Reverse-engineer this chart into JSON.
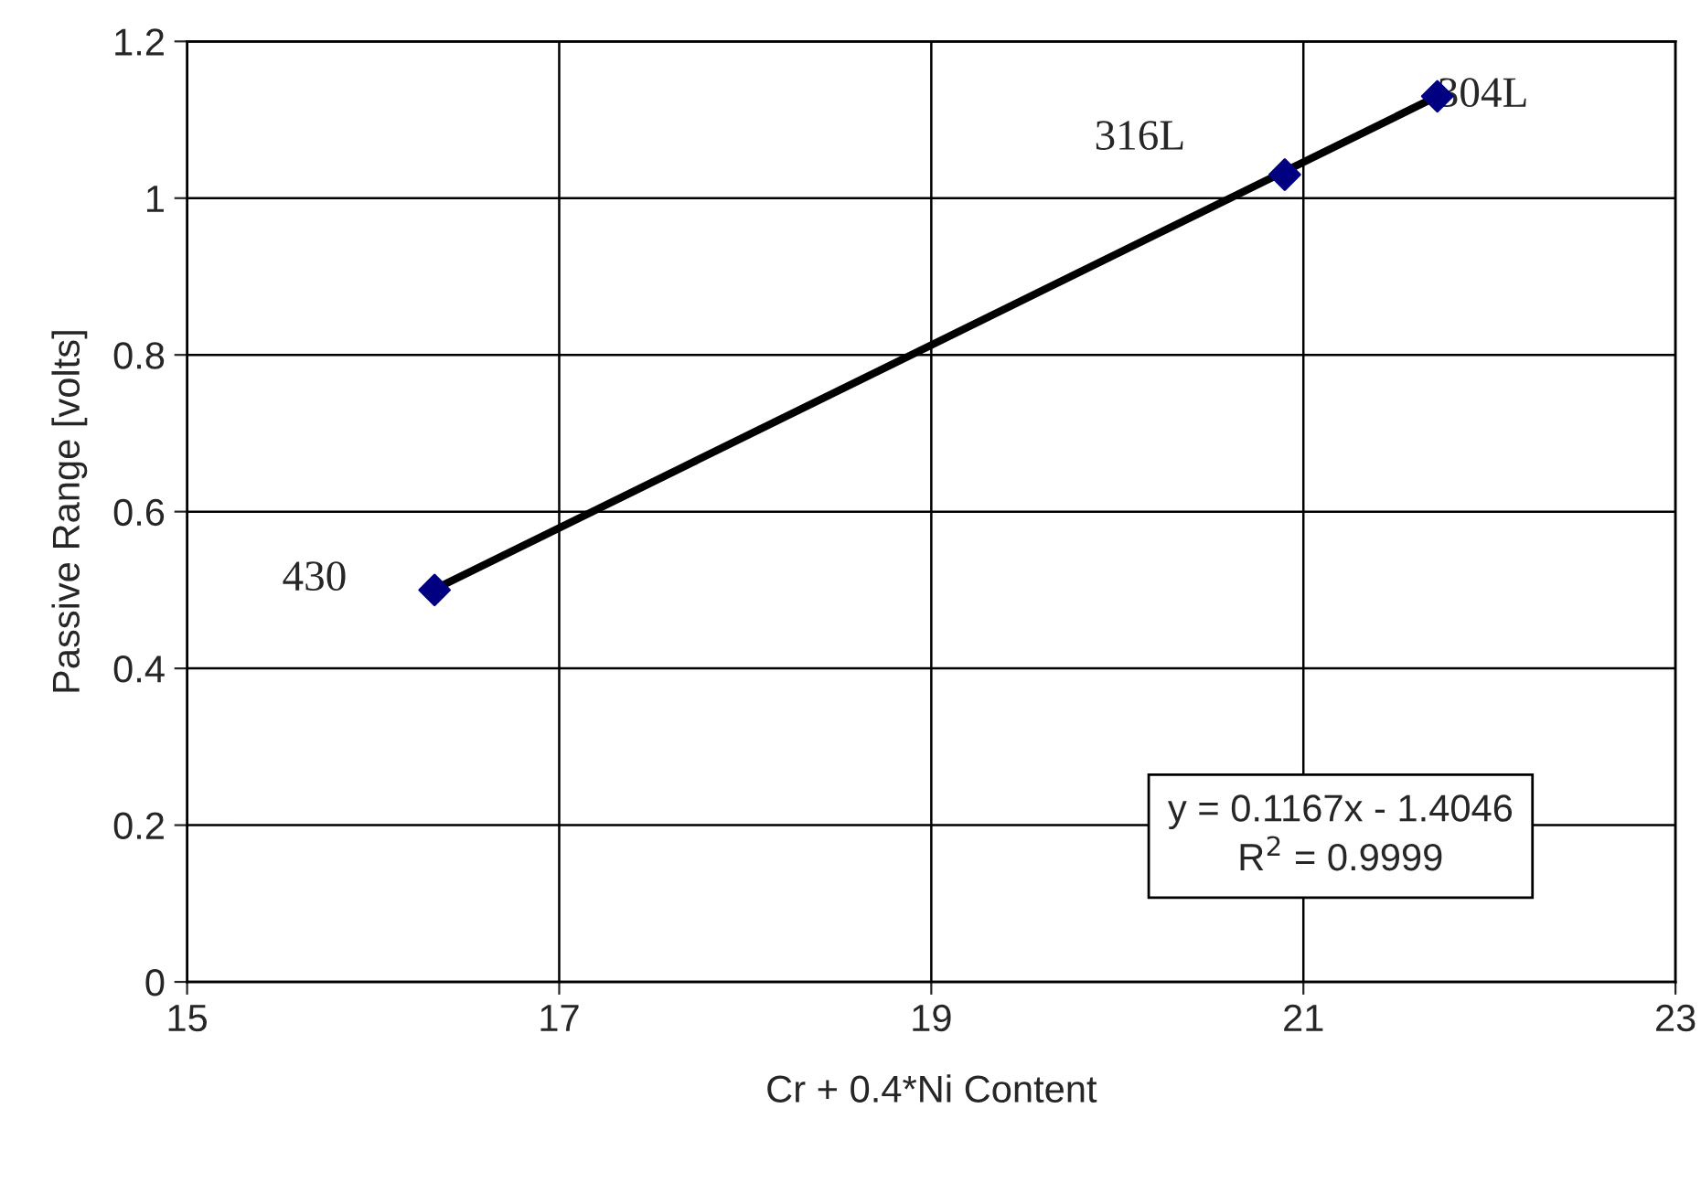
{
  "chart_data": {
    "type": "scatter",
    "xlabel": "Cr + 0.4*Ni Content",
    "ylabel": "Passive Range [volts]",
    "xlim": [
      15,
      23
    ],
    "xticks": [
      15,
      17,
      19,
      21,
      23
    ],
    "ylim": [
      0,
      1.2
    ],
    "yticks": [
      0,
      0.2,
      0.4,
      0.6,
      0.8,
      1,
      1.2
    ],
    "grid": true,
    "series": [
      {
        "color": "#000080",
        "marker": "diamond",
        "x": [
          16.33,
          20.9,
          21.72
        ],
        "values": [
          0.5,
          1.03,
          1.13
        ]
      },
      {
        "type": "line",
        "color": "#000000",
        "marker": "none",
        "line_style": "solid",
        "x": [
          16.33,
          21.72
        ],
        "values": [
          0.501,
          1.13
        ]
      }
    ],
    "annotations": [
      {
        "text": "430",
        "x": 16.33,
        "y": 0.5
      },
      {
        "text": "316L",
        "x": 20.9,
        "y": 1.03
      },
      {
        "text": "304L",
        "x": 21.72,
        "y": 1.13
      },
      "y = 0.1167x - 1.4046\nR$^{2}$ = 0.9999"
    ]
  }
}
